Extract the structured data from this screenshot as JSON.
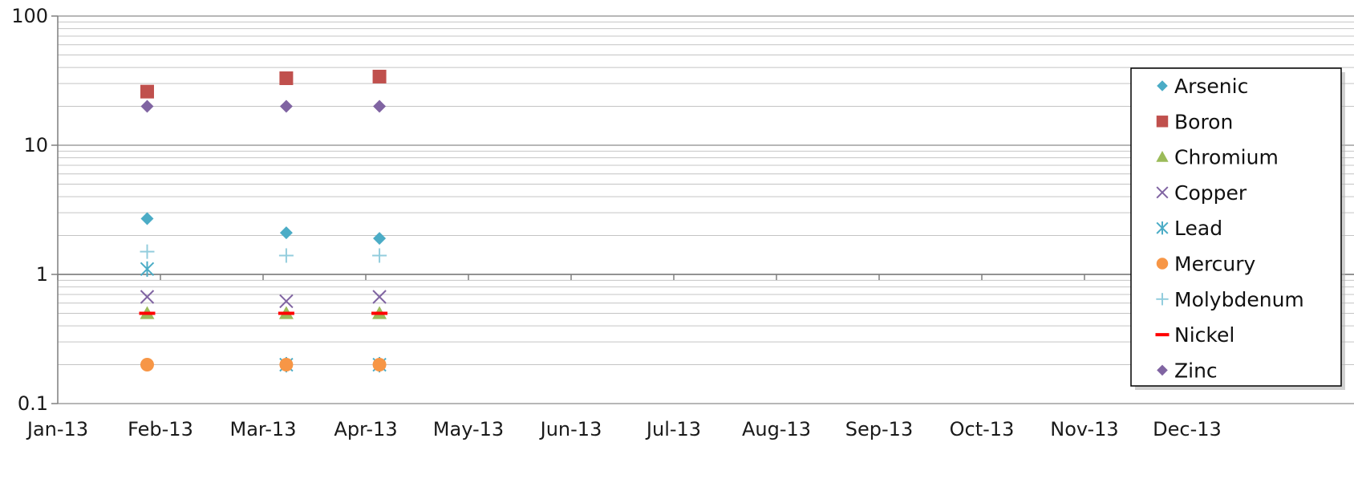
{
  "chart_data": {
    "type": "scatter",
    "title": "",
    "xlabel": "",
    "ylabel": "",
    "y_scale": "log",
    "ylim": [
      0.1,
      100
    ],
    "xlim": [
      "2013-01",
      "2013-12"
    ],
    "y_ticks": [
      {
        "value": 0.1,
        "label": "0.1"
      },
      {
        "value": 1,
        "label": "1"
      },
      {
        "value": 10,
        "label": "10"
      },
      {
        "value": 100,
        "label": "100"
      }
    ],
    "x_ticks": [
      {
        "value": "2013-01",
        "label": "Jan-13"
      },
      {
        "value": "2013-02",
        "label": "Feb-13"
      },
      {
        "value": "2013-03",
        "label": "Mar-13"
      },
      {
        "value": "2013-04",
        "label": "Apr-13"
      },
      {
        "value": "2013-05",
        "label": "May-13"
      },
      {
        "value": "2013-06",
        "label": "Jun-13"
      },
      {
        "value": "2013-07",
        "label": "Jul-13"
      },
      {
        "value": "2013-08",
        "label": "Aug-13"
      },
      {
        "value": "2013-09",
        "label": "Sep-13"
      },
      {
        "value": "2013-10",
        "label": "Oct-13"
      },
      {
        "value": "2013-11",
        "label": "Nov-13"
      },
      {
        "value": "2013-12",
        "label": "Dec-13"
      }
    ],
    "grid": true,
    "legend_position": "right",
    "x": [
      "2013-01-28",
      "2013-03-08",
      "2013-04-05"
    ],
    "series": [
      {
        "name": "Arsenic",
        "marker": "diamond",
        "color": "#4bacc6",
        "values": [
          2.7,
          2.1,
          1.9
        ]
      },
      {
        "name": "Boron",
        "marker": "square",
        "color": "#c0504d",
        "values": [
          26,
          33,
          34
        ]
      },
      {
        "name": "Chromium",
        "marker": "triangle",
        "color": "#9bbb59",
        "values": [
          0.5,
          0.5,
          0.5
        ]
      },
      {
        "name": "Copper",
        "marker": "x",
        "color": "#8064a2",
        "values": [
          0.67,
          0.62,
          0.67
        ]
      },
      {
        "name": "Lead",
        "marker": "star",
        "color": "#4bacc6",
        "values": [
          1.1,
          0.2,
          0.2
        ]
      },
      {
        "name": "Mercury",
        "marker": "circle",
        "color": "#f79646",
        "values": [
          0.2,
          0.2,
          0.2
        ]
      },
      {
        "name": "Molybdenum",
        "marker": "plus",
        "color": "#93cddd",
        "values": [
          1.5,
          1.4,
          1.4
        ]
      },
      {
        "name": "Nickel",
        "marker": "dash",
        "color": "#ff0000",
        "values": [
          0.5,
          0.5,
          0.5
        ]
      },
      {
        "name": "Zinc",
        "marker": "diamond",
        "color": "#8064a2",
        "values": [
          20,
          20,
          20
        ]
      }
    ]
  }
}
